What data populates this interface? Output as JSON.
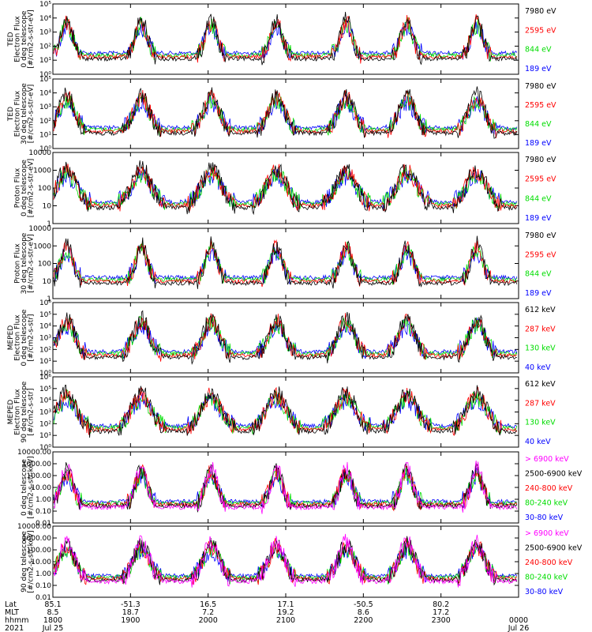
{
  "colors": {
    "black": "#000000",
    "red": "#ff0000",
    "green": "#00dd00",
    "blue": "#0000ff",
    "magenta": "#ff00ff"
  },
  "chart_data": [
    {
      "type": "line",
      "ylabel": [
        "TED",
        "Electron Flux",
        "0 deg telescope",
        "[#/cm2-s-str-eV]"
      ],
      "yscale": "log",
      "ylim": [
        1,
        100000
      ],
      "yticks": [
        "10⁰",
        "10¹",
        "10²",
        "10³",
        "10⁴",
        "10⁵"
      ],
      "series": [
        {
          "name": "7980 eV",
          "color": "black"
        },
        {
          "name": "2595 eV",
          "color": "red"
        },
        {
          "name": "844 eV",
          "color": "green"
        },
        {
          "name": "189 eV",
          "color": "blue"
        }
      ]
    },
    {
      "type": "line",
      "ylabel": [
        "TED",
        "Electron Flux",
        "30 deg telescope",
        "[#/cm2-s-str-eV]"
      ],
      "yscale": "log",
      "ylim": [
        1,
        100000
      ],
      "yticks": [
        "10⁰",
        "10¹",
        "10²",
        "10³",
        "10⁴",
        "10⁵"
      ],
      "series": [
        {
          "name": "7980 eV",
          "color": "black"
        },
        {
          "name": "2595 eV",
          "color": "red"
        },
        {
          "name": "844 eV",
          "color": "green"
        },
        {
          "name": "189 eV",
          "color": "blue"
        }
      ]
    },
    {
      "type": "line",
      "ylabel": [
        "Proton Flux",
        "0 deg telescope",
        "[#/cm2-s-str-eV]"
      ],
      "yscale": "log",
      "ylim": [
        1,
        10000
      ],
      "yticks": [
        "1",
        "10",
        "100",
        "1000",
        "10000"
      ],
      "series": [
        {
          "name": "7980 eV",
          "color": "black"
        },
        {
          "name": "2595 eV",
          "color": "red"
        },
        {
          "name": "844 eV",
          "color": "green"
        },
        {
          "name": "189 eV",
          "color": "blue"
        }
      ]
    },
    {
      "type": "line",
      "ylabel": [
        "Proton Flux",
        "30 deg telescope",
        "[#/cm2-s-str-eV]"
      ],
      "yscale": "log",
      "ylim": [
        1,
        10000
      ],
      "yticks": [
        "1",
        "10",
        "100",
        "1000",
        "10000"
      ],
      "series": [
        {
          "name": "7980 eV",
          "color": "black"
        },
        {
          "name": "2595 eV",
          "color": "red"
        },
        {
          "name": "844 eV",
          "color": "green"
        },
        {
          "name": "189 eV",
          "color": "blue"
        }
      ]
    },
    {
      "type": "line",
      "ylabel": [
        "MEPED",
        "Electron Flux",
        "0 deg telescope",
        "[#/cm2-s-str]"
      ],
      "yscale": "log",
      "ylim": [
        1,
        1000000
      ],
      "yticks": [
        "10⁰",
        "10¹",
        "10²",
        "10³",
        "10⁴",
        "10⁵",
        "10⁶"
      ],
      "series": [
        {
          "name": "612 keV",
          "color": "black"
        },
        {
          "name": "287 keV",
          "color": "red"
        },
        {
          "name": "130 keV",
          "color": "green"
        },
        {
          "name": "40 keV",
          "color": "blue"
        }
      ]
    },
    {
      "type": "line",
      "ylabel": [
        "MEPED",
        "Electron Flux",
        "90 deg telescope",
        "[#/cm2-s-str]"
      ],
      "yscale": "log",
      "ylim": [
        1,
        1000000
      ],
      "yticks": [
        "10⁰",
        "10¹",
        "10²",
        "10³",
        "10⁴",
        "10⁵",
        "10⁶"
      ],
      "series": [
        {
          "name": "612 keV",
          "color": "black"
        },
        {
          "name": "287 keV",
          "color": "red"
        },
        {
          "name": "130 keV",
          "color": "green"
        },
        {
          "name": "40 keV",
          "color": "blue"
        }
      ]
    },
    {
      "type": "line",
      "ylabel": [
        "0 deg telescope",
        "[#/cm2-s-str-keV]"
      ],
      "yscale": "log",
      "ylim": [
        0.01,
        10000
      ],
      "yticks": [
        "0.01",
        "0.10",
        "1.00",
        "10.00",
        "100.00",
        "1000.00",
        "10000.00"
      ],
      "series": [
        {
          "name": "> 6900 keV",
          "color": "magenta"
        },
        {
          "name": "2500-6900 keV",
          "color": "black"
        },
        {
          "name": "240-800 keV",
          "color": "red"
        },
        {
          "name": "80-240 keV",
          "color": "green"
        },
        {
          "name": "30-80 keV",
          "color": "blue"
        }
      ]
    },
    {
      "type": "line",
      "ylabel": [
        "90 deg telescope",
        "[#/cm2-s-str-keV]"
      ],
      "yscale": "log",
      "ylim": [
        0.01,
        10000
      ],
      "yticks": [
        "0.01",
        "0.10",
        "1.00",
        "10.00",
        "100.00",
        "1000.00",
        "10000.00"
      ],
      "series": [
        {
          "name": "> 6900 keV",
          "color": "magenta"
        },
        {
          "name": "2500-6900 keV",
          "color": "black"
        },
        {
          "name": "240-800 keV",
          "color": "red"
        },
        {
          "name": "80-240 keV",
          "color": "green"
        },
        {
          "name": "30-80 keV",
          "color": "blue"
        }
      ]
    }
  ],
  "time_axis": {
    "row_labels": [
      "Lat",
      "MLT",
      "hhmm",
      "2021"
    ],
    "range": [
      "1800",
      "0000"
    ],
    "ticks": [
      {
        "Lat": "85.1",
        "MLT": "8.5",
        "hhmm": "1800",
        "date": "Jul 25"
      },
      {
        "Lat": "-51.3",
        "MLT": "18.7",
        "hhmm": "1900",
        "date": ""
      },
      {
        "Lat": "16.5",
        "MLT": "7.2",
        "hhmm": "2000",
        "date": ""
      },
      {
        "Lat": "17.1",
        "MLT": "19.2",
        "hhmm": "2100",
        "date": ""
      },
      {
        "Lat": "-50.5",
        "MLT": "8.6",
        "hhmm": "2200",
        "date": ""
      },
      {
        "Lat": "80.2",
        "MLT": "17.2",
        "hhmm": "2300",
        "date": ""
      },
      {
        "Lat": "",
        "MLT": "",
        "hhmm": "0000",
        "date": "Jul 26"
      }
    ]
  }
}
